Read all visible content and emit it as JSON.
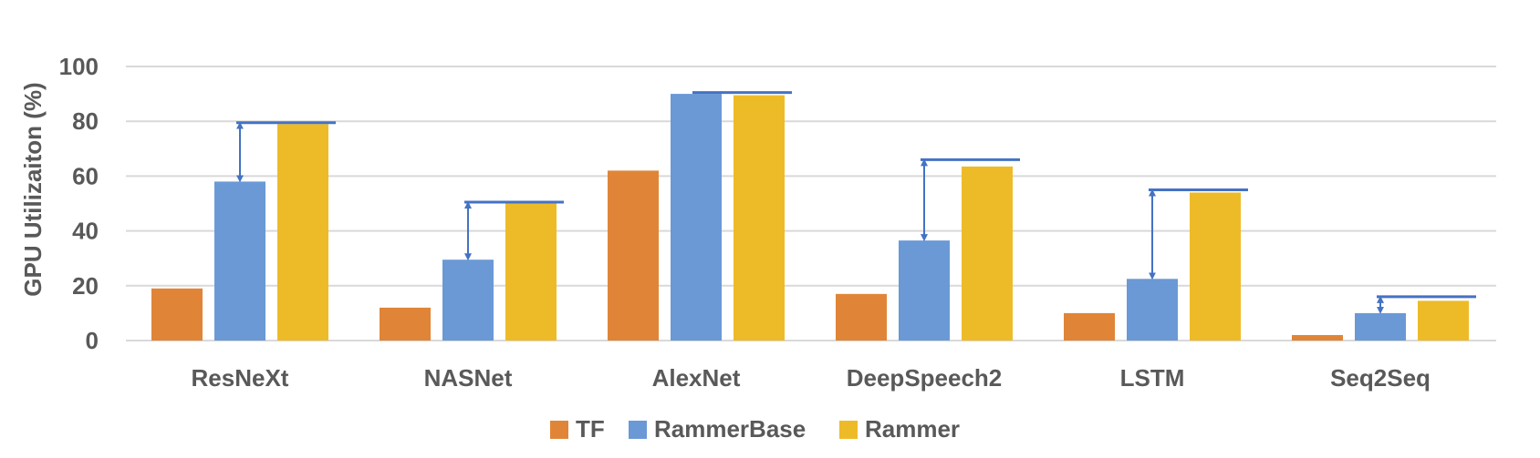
{
  "chart_data": {
    "type": "bar",
    "title": "",
    "xlabel": "",
    "ylabel": "GPU Utilizaiton (%)",
    "ylim": [
      0,
      100
    ],
    "yticks": [
      0,
      20,
      40,
      60,
      80,
      100
    ],
    "grid": true,
    "legend_position": "bottom",
    "categories": [
      "ResNeXt",
      "NASNet",
      "AlexNet",
      "DeepSpeech2",
      "LSTM",
      "Seq2Seq"
    ],
    "series": [
      {
        "name": "TF",
        "color": "#E08537",
        "values": [
          19,
          12,
          62,
          17,
          10,
          2
        ]
      },
      {
        "name": "RammerBase",
        "color": "#6A99D6",
        "values": [
          58,
          29.5,
          90,
          36.5,
          22.5,
          10
        ]
      },
      {
        "name": "Rammer",
        "color": "#EEBB28",
        "values": [
          79,
          50,
          89.5,
          63.5,
          54,
          14.5
        ]
      }
    ],
    "annotations": {
      "color": "#4472C4",
      "cap_lines": [
        {
          "category": "ResNeXt",
          "value": 79.5,
          "arrow": true
        },
        {
          "category": "NASNet",
          "value": 50.5,
          "arrow": true
        },
        {
          "category": "AlexNet",
          "value": 90.5,
          "arrow": false
        },
        {
          "category": "DeepSpeech2",
          "value": 66,
          "arrow": true
        },
        {
          "category": "LSTM",
          "value": 55,
          "arrow": true
        },
        {
          "category": "Seq2Seq",
          "value": 16,
          "arrow": true
        }
      ]
    }
  }
}
